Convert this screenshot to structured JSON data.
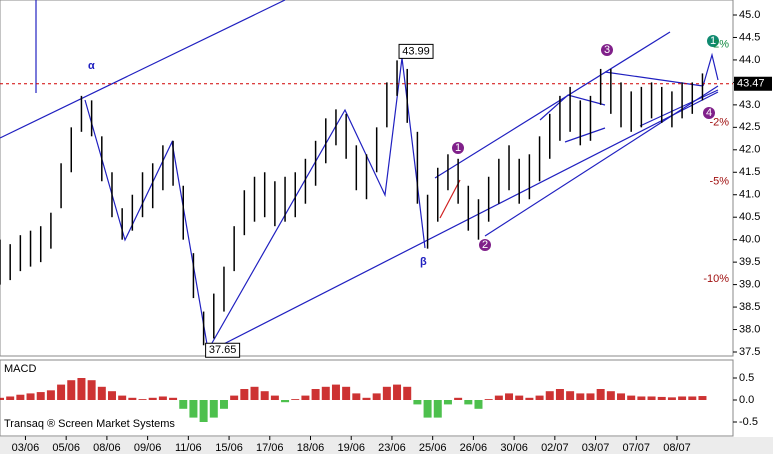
{
  "chart_data": {
    "type": "ohlc",
    "bar_color": "#000000",
    "xlim": [
      0,
      72
    ],
    "xticks": [
      {
        "value": 2.5,
        "label": "03/06"
      },
      {
        "value": 6.5,
        "label": "05/06"
      },
      {
        "value": 10.5,
        "label": "08/06"
      },
      {
        "value": 14.5,
        "label": "09/06"
      },
      {
        "value": 18.5,
        "label": "11/06"
      },
      {
        "value": 22.5,
        "label": "15/06"
      },
      {
        "value": 26.5,
        "label": "17/06"
      },
      {
        "value": 30.5,
        "label": "18/06"
      },
      {
        "value": 34.5,
        "label": "19/06"
      },
      {
        "value": 38.5,
        "label": "23/06"
      },
      {
        "value": 42.5,
        "label": "25/06"
      },
      {
        "value": 46.5,
        "label": "26/06"
      },
      {
        "value": 50.5,
        "label": "30/06"
      },
      {
        "value": 54.5,
        "label": "02/07"
      },
      {
        "value": 58.5,
        "label": "03/07"
      },
      {
        "value": 62.5,
        "label": "07/07"
      },
      {
        "value": 66.5,
        "label": "08/07"
      }
    ],
    "x": [
      0,
      1,
      2,
      3,
      4,
      5,
      6,
      7,
      8,
      9,
      10,
      11,
      12,
      13,
      14,
      15,
      16,
      17,
      18,
      19,
      20,
      21,
      22,
      23,
      24,
      25,
      26,
      27,
      28,
      29,
      30,
      31,
      32,
      33,
      34,
      35,
      36,
      37,
      38,
      39,
      40,
      41,
      42,
      43,
      44,
      45,
      46,
      47,
      48,
      49,
      50,
      51,
      52,
      53,
      54,
      55,
      56,
      57,
      58,
      59,
      60,
      61,
      62,
      63,
      64,
      65,
      66,
      67,
      68,
      69
    ],
    "high": [
      40.0,
      39.9,
      40.1,
      40.2,
      40.3,
      40.6,
      41.7,
      42.5,
      43.2,
      43.1,
      42.3,
      41.5,
      40.7,
      41.0,
      41.5,
      41.7,
      42.1,
      42.2,
      41.2,
      39.7,
      38.4,
      38.8,
      39.4,
      40.3,
      41.1,
      41.4,
      41.5,
      41.3,
      41.4,
      41.5,
      41.8,
      42.2,
      42.7,
      42.9,
      42.8,
      42.1,
      41.9,
      42.5,
      43.5,
      43.99,
      43.8,
      42.4,
      41.0,
      41.6,
      41.9,
      41.8,
      41.2,
      40.9,
      41.4,
      41.8,
      42.1,
      41.8,
      41.9,
      42.3,
      42.8,
      43.2,
      43.4,
      43.1,
      43.2,
      43.8,
      43.8,
      43.5,
      43.3,
      43.4,
      43.5,
      43.4,
      43.3,
      43.5,
      43.5,
      43.7
    ],
    "low": [
      39.0,
      39.1,
      39.3,
      39.4,
      39.5,
      39.8,
      40.7,
      41.5,
      42.4,
      42.3,
      41.3,
      40.5,
      40.0,
      40.2,
      40.5,
      40.7,
      41.1,
      41.2,
      40.0,
      38.7,
      37.65,
      37.8,
      38.4,
      39.3,
      40.1,
      40.4,
      40.5,
      40.3,
      40.4,
      40.5,
      40.8,
      41.2,
      41.7,
      42.1,
      41.8,
      41.1,
      40.9,
      41.5,
      42.5,
      43.2,
      42.6,
      40.8,
      39.8,
      40.4,
      41.1,
      40.8,
      40.2,
      40.0,
      40.4,
      40.8,
      41.1,
      40.8,
      40.9,
      41.3,
      41.8,
      42.2,
      42.4,
      42.1,
      42.2,
      43.0,
      42.8,
      42.5,
      42.4,
      42.5,
      42.7,
      42.6,
      42.5,
      42.7,
      42.8,
      43.1
    ],
    "ylim": [
      37.5,
      45.0
    ],
    "yticks": [
      37.5,
      {
        "value": 38,
        "label": "38.0"
      },
      38.5,
      {
        "value": 39,
        "label": "39.0"
      },
      39.5,
      {
        "value": 40,
        "label": "40.0"
      },
      40.5,
      {
        "value": 41,
        "label": "41.0"
      },
      41.5,
      {
        "value": 42,
        "label": "42.0"
      },
      42.5,
      {
        "value": 43,
        "label": "43.0"
      },
      43.5,
      {
        "value": 44,
        "label": "44.0"
      },
      44.5,
      {
        "value": 45,
        "label": "45.0"
      }
    ],
    "last_price": 43.47,
    "last_price_color": "#d00000",
    "period_high": 43.99,
    "period_low": 37.65,
    "percent_levels": [
      {
        "value": 2,
        "label": "2%"
      },
      {
        "value": -2,
        "label": "-2%"
      },
      {
        "value": -5,
        "label": "-5%"
      },
      {
        "value": -10,
        "label": "-10%"
      }
    ],
    "annotations": [
      "α",
      "β"
    ],
    "wave_labels": [
      "1",
      "2",
      "3",
      "4",
      "1"
    ],
    "indicator": {
      "title": "MACD",
      "type": "histogram",
      "up_color": "#c00000",
      "down_color": "#20b020",
      "values": [
        0.05,
        0.08,
        0.12,
        0.15,
        0.18,
        0.22,
        0.35,
        0.45,
        0.5,
        0.45,
        0.3,
        0.2,
        0.1,
        0.05,
        0.02,
        0.05,
        0.08,
        0.05,
        -0.2,
        -0.4,
        -0.5,
        -0.4,
        -0.2,
        0.1,
        0.25,
        0.3,
        0.2,
        0.1,
        -0.05,
        0.02,
        0.1,
        0.25,
        0.3,
        0.35,
        0.3,
        0.15,
        0.05,
        0.15,
        0.3,
        0.35,
        0.3,
        -0.1,
        -0.4,
        -0.4,
        -0.1,
        0.05,
        -0.1,
        -0.2,
        0.02,
        0.1,
        0.15,
        0.1,
        0.05,
        0.1,
        0.2,
        0.25,
        0.2,
        0.15,
        0.15,
        0.25,
        0.2,
        0.15,
        0.1,
        0.08,
        0.08,
        0.07,
        0.06,
        0.08,
        0.08,
        0.09
      ],
      "ylim": [
        -0.72,
        0.72
      ],
      "yticks": [
        0.5,
        {
          "value": 0,
          "label": "0.0"
        },
        -0.5
      ]
    },
    "footer": "Transaq ® Screen Market Systems"
  }
}
